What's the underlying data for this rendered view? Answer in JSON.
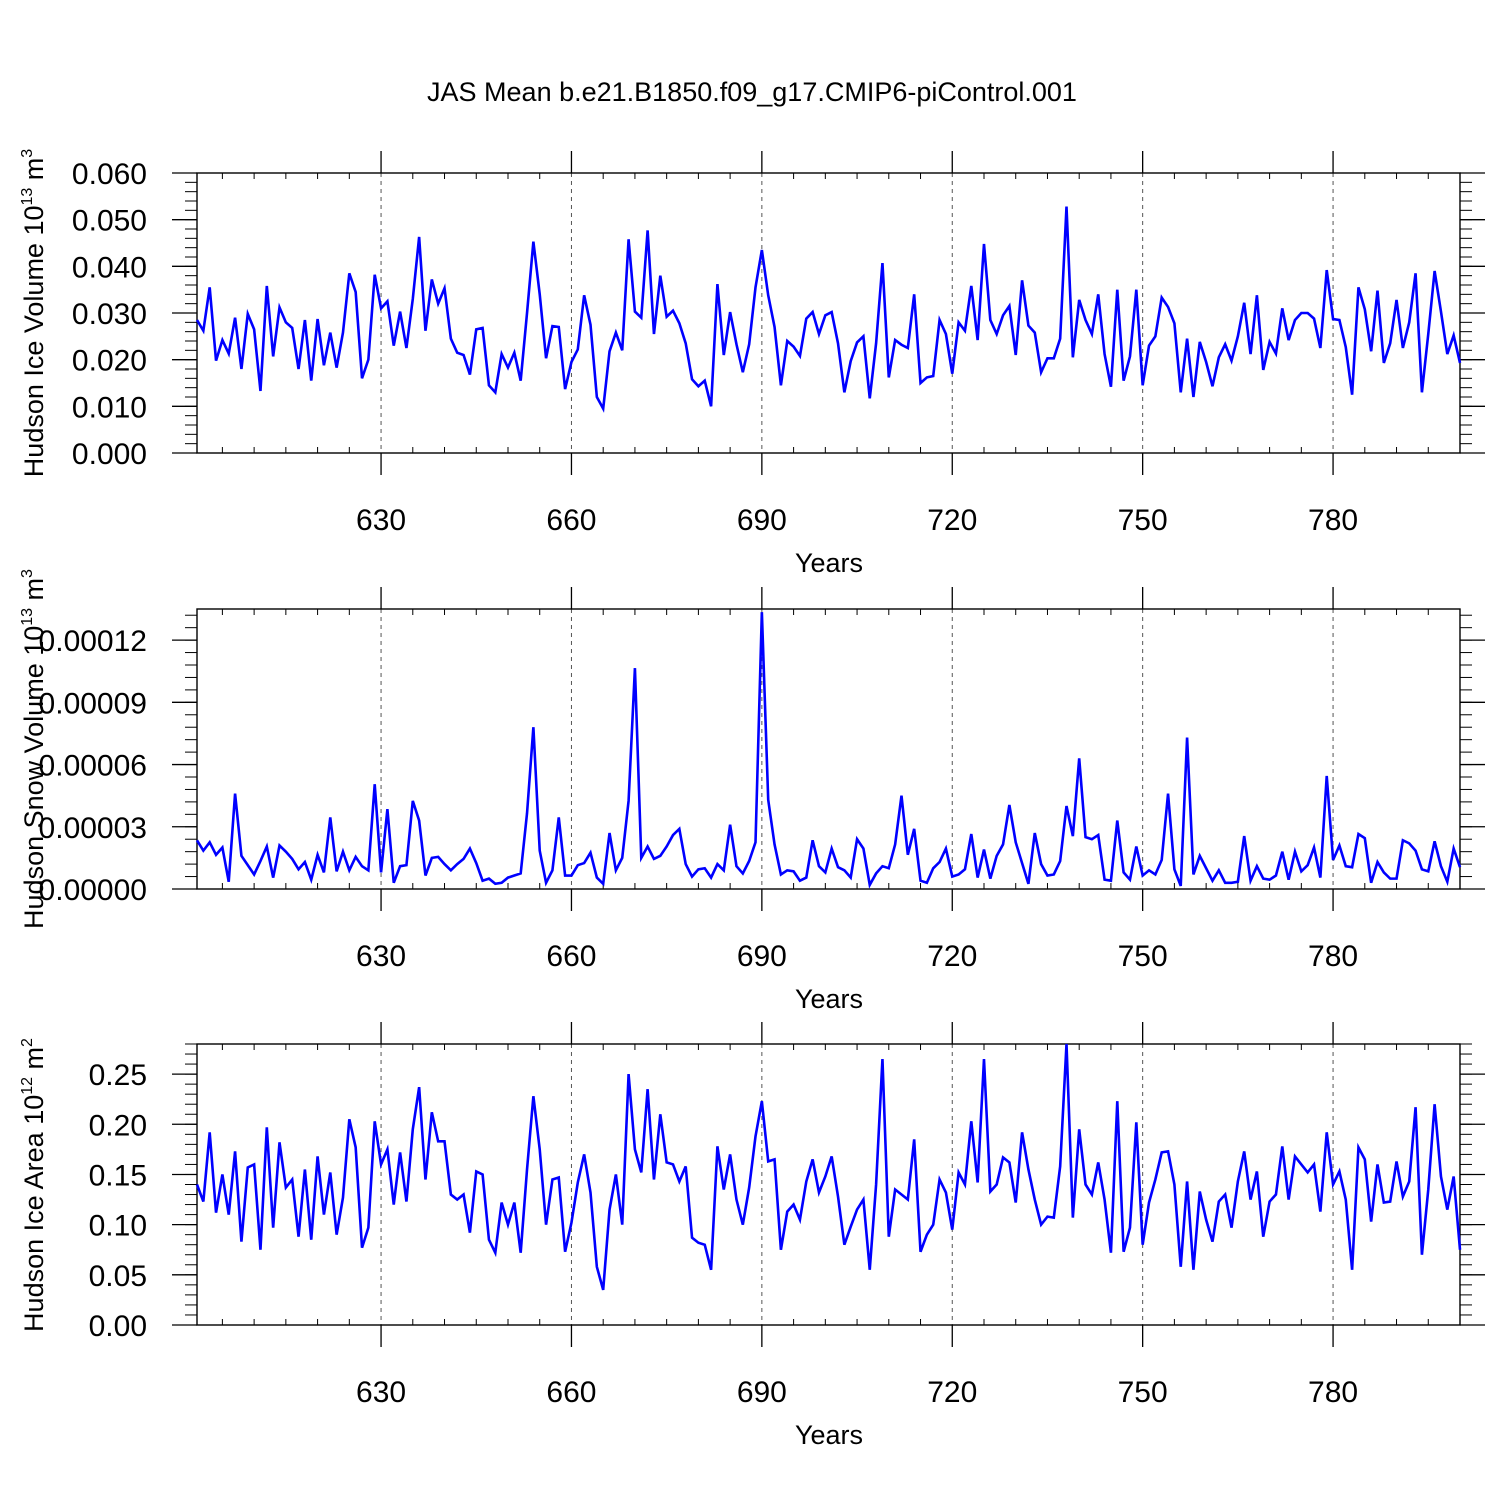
{
  "title": "JAS Mean b.e21.B1850.f09_g17.CMIP6-piControl.001",
  "chart_data": [
    {
      "type": "line",
      "title": "",
      "xlabel": "Years",
      "ylabel": "Hudson Ice Volume 10",
      "ylabel_exp": "13",
      "ylabel_unit": " m",
      "ylabel_unit_exp": "3",
      "xlim": [
        601,
        800
      ],
      "ylim": [
        0.0,
        0.06
      ],
      "x_ticks": [
        630,
        660,
        690,
        720,
        750,
        780
      ],
      "x_tick_labels": [
        "630",
        "660",
        "690",
        "720",
        "750",
        "780"
      ],
      "y_ticks": [
        0.0,
        0.01,
        0.02,
        0.03,
        0.04,
        0.05,
        0.06
      ],
      "y_tick_labels": [
        "0.000",
        "0.010",
        "0.020",
        "0.030",
        "0.040",
        "0.050",
        "0.060"
      ],
      "color": "#0000ff",
      "x_start": 601,
      "values": [
        0.0285,
        0.0262,
        0.0355,
        0.0198,
        0.0242,
        0.0213,
        0.029,
        0.018,
        0.0298,
        0.0265,
        0.0133,
        0.0358,
        0.0207,
        0.0312,
        0.028,
        0.0268,
        0.018,
        0.0285,
        0.0155,
        0.0287,
        0.0188,
        0.0258,
        0.0183,
        0.0258,
        0.0385,
        0.0345,
        0.016,
        0.02,
        0.0382,
        0.031,
        0.0325,
        0.023,
        0.0303,
        0.0225,
        0.033,
        0.0463,
        0.0262,
        0.0372,
        0.032,
        0.0353,
        0.0245,
        0.0215,
        0.021,
        0.0168,
        0.0265,
        0.0268,
        0.0145,
        0.013,
        0.0212,
        0.0183,
        0.0215,
        0.0155,
        0.03,
        0.0453,
        0.034,
        0.0203,
        0.0272,
        0.027,
        0.0137,
        0.0195,
        0.0222,
        0.0338,
        0.0275,
        0.012,
        0.0095,
        0.0218,
        0.0258,
        0.022,
        0.0458,
        0.0303,
        0.029,
        0.0477,
        0.0255,
        0.038,
        0.0292,
        0.0305,
        0.0278,
        0.0235,
        0.0158,
        0.0143,
        0.0155,
        0.01,
        0.0362,
        0.021,
        0.0302,
        0.0233,
        0.0173,
        0.0233,
        0.0355,
        0.0435,
        0.0338,
        0.027,
        0.0145,
        0.024,
        0.0228,
        0.0208,
        0.0288,
        0.0302,
        0.0255,
        0.0295,
        0.0302,
        0.0235,
        0.013,
        0.0197,
        0.0237,
        0.025,
        0.0117,
        0.0235,
        0.0407,
        0.0162,
        0.0242,
        0.0232,
        0.0225,
        0.034,
        0.015,
        0.0162,
        0.0165,
        0.0285,
        0.0255,
        0.017,
        0.028,
        0.0262,
        0.0358,
        0.0242,
        0.0448,
        0.0285,
        0.0255,
        0.0295,
        0.0315,
        0.021,
        0.037,
        0.0273,
        0.0258,
        0.0173,
        0.0203,
        0.0203,
        0.0245,
        0.0528,
        0.0205,
        0.0328,
        0.0285,
        0.0255,
        0.034,
        0.0212,
        0.0142,
        0.035,
        0.0155,
        0.0207,
        0.035,
        0.0145,
        0.023,
        0.025,
        0.0333,
        0.0313,
        0.0278,
        0.013,
        0.0245,
        0.012,
        0.0238,
        0.0195,
        0.0143,
        0.0205,
        0.0233,
        0.0198,
        0.025,
        0.0322,
        0.0212,
        0.0338,
        0.0178,
        0.0238,
        0.0213,
        0.031,
        0.0242,
        0.0285,
        0.03,
        0.03,
        0.0288,
        0.0225,
        0.0392,
        0.0287,
        0.0285,
        0.0227,
        0.0125,
        0.0355,
        0.0308,
        0.0218,
        0.0348,
        0.0193,
        0.0235,
        0.0328,
        0.0225,
        0.028,
        0.0385,
        0.013,
        0.0255,
        0.039,
        0.0303,
        0.0212,
        0.0252,
        0.0193
      ]
    },
    {
      "type": "line",
      "title": "",
      "xlabel": "Years",
      "ylabel": "Hudson Snow Volume 10",
      "ylabel_exp": "13",
      "ylabel_unit": " m",
      "ylabel_unit_exp": "3",
      "xlim": [
        601,
        800
      ],
      "ylim": [
        0.0,
        0.000135
      ],
      "x_ticks": [
        630,
        660,
        690,
        720,
        750,
        780
      ],
      "x_tick_labels": [
        "630",
        "660",
        "690",
        "720",
        "750",
        "780"
      ],
      "y_ticks": [
        0.0,
        3e-05,
        6e-05,
        9e-05,
        0.00012
      ],
      "y_tick_labels": [
        "0.00000",
        "0.00003",
        "0.00006",
        "0.00009",
        "0.00012"
      ],
      "color": "#0000ff",
      "x_start": 601,
      "values": [
        2.35e-05,
        1.85e-05,
        2.25e-05,
        1.65e-05,
        2e-05,
        3.5e-06,
        4.6e-05,
        1.6e-05,
        1.15e-05,
        7e-06,
        1.35e-05,
        2.05e-05,
        5.5e-06,
        2.1e-05,
        1.8e-05,
        1.45e-05,
        9.5e-06,
        1.3e-05,
        4.5e-06,
        1.65e-05,
        8e-06,
        3.45e-05,
        8.5e-06,
        1.8e-05,
        9e-06,
        1.55e-05,
        1.1e-05,
        9e-06,
        5.05e-05,
        8e-06,
        3.85e-05,
        3e-06,
        1.1e-05,
        1.15e-05,
        4.25e-05,
        3.3e-05,
        6.5e-06,
        1.5e-05,
        1.55e-05,
        1.2e-05,
        9e-06,
        1.2e-05,
        1.45e-05,
        1.95e-05,
        1.25e-05,
        4e-06,
        5e-06,
        2.5e-06,
        3e-06,
        5.5e-06,
        6.5e-06,
        7.5e-06,
        3.65e-05,
        7.8e-05,
        1.85e-05,
        3e-06,
        9e-06,
        3.45e-05,
        6.5e-06,
        6.5e-06,
        1.15e-05,
        1.25e-05,
        1.75e-05,
        5.5e-06,
        2.5e-06,
        2.7e-05,
        9e-06,
        1.5e-05,
        4.25e-05,
        0.0001065,
        1.5e-05,
        2.05e-05,
        1.45e-05,
        1.6e-05,
        2.05e-05,
        2.6e-05,
        2.9e-05,
        1.2e-05,
        6e-06,
        9.5e-06,
        1e-05,
        5.5e-06,
        1.2e-05,
        9e-06,
        3.1e-05,
        1.1e-05,
        7.5e-06,
        1.35e-05,
        2.25e-05,
        0.0001335,
        4.3e-05,
        2.15e-05,
        7e-06,
        9e-06,
        8.5e-06,
        4e-06,
        5.5e-06,
        2.35e-05,
        1.1e-05,
        8e-06,
        1.95e-05,
        1.05e-05,
        9e-06,
        5.5e-06,
        2.4e-05,
        1.95e-05,
        2e-06,
        7.5e-06,
        1.1e-05,
        1e-05,
        2.15e-05,
        4.5e-05,
        1.65e-05,
        2.9e-05,
        4e-06,
        3e-06,
        1e-05,
        1.3e-05,
        1.95e-05,
        6e-06,
        7e-06,
        9.5e-06,
        2.65e-05,
        5.5e-06,
        1.9e-05,
        5e-06,
        1.6e-05,
        2.15e-05,
        4.05e-05,
        2.25e-05,
        1.25e-05,
        2.5e-06,
        2.7e-05,
        1.2e-05,
        6.5e-06,
        7e-06,
        1.35e-05,
        4e-05,
        2.55e-05,
        6.3e-05,
        2.5e-05,
        2.4e-05,
        2.6e-05,
        4.5e-06,
        4e-06,
        3.3e-05,
        8e-06,
        4.5e-06,
        2.05e-05,
        6.5e-06,
        9e-06,
        7e-06,
        1.4e-05,
        4.6e-05,
        9.5e-06,
        1.5e-06,
        7.3e-05,
        7e-06,
        1.6e-05,
        1e-05,
        4e-06,
        9e-06,
        3e-06,
        3e-06,
        3.5e-06,
        2.55e-05,
        4e-06,
        1.1e-05,
        5e-06,
        4.5e-06,
        6.5e-06,
        1.8e-05,
        4.5e-06,
        1.8e-05,
        8.5e-06,
        1.15e-05,
        2e-05,
        5.5e-06,
        5.45e-05,
        1.4e-05,
        2.1e-05,
        1.1e-05,
        1.05e-05,
        2.65e-05,
        2.45e-05,
        3e-06,
        1.3e-05,
        8e-06,
        5e-06,
        5e-06,
        2.35e-05,
        2.2e-05,
        1.85e-05,
        9.5e-06,
        8.5e-06,
        2.3e-05,
        1.1e-05,
        3.5e-06,
        1.95e-05,
        1.05e-05
      ]
    },
    {
      "type": "line",
      "title": "",
      "xlabel": "Years",
      "ylabel": "Hudson Ice Area 10",
      "ylabel_exp": "12",
      "ylabel_unit": " m",
      "ylabel_unit_exp": "2",
      "xlim": [
        601,
        800
      ],
      "ylim": [
        0.0,
        0.28
      ],
      "x_ticks": [
        630,
        660,
        690,
        720,
        750,
        780
      ],
      "x_tick_labels": [
        "630",
        "660",
        "690",
        "720",
        "750",
        "780"
      ],
      "y_ticks": [
        0.0,
        0.05,
        0.1,
        0.15,
        0.2,
        0.25
      ],
      "y_tick_labels": [
        "0.00",
        "0.05",
        "0.10",
        "0.15",
        "0.20",
        "0.25"
      ],
      "color": "#0000ff",
      "x_start": 601,
      "values": [
        0.14,
        0.123,
        0.192,
        0.112,
        0.15,
        0.11,
        0.173,
        0.083,
        0.157,
        0.16,
        0.075,
        0.197,
        0.097,
        0.182,
        0.137,
        0.145,
        0.088,
        0.155,
        0.085,
        0.168,
        0.11,
        0.152,
        0.09,
        0.127,
        0.205,
        0.177,
        0.077,
        0.097,
        0.203,
        0.16,
        0.175,
        0.12,
        0.172,
        0.123,
        0.195,
        0.237,
        0.145,
        0.212,
        0.183,
        0.183,
        0.13,
        0.125,
        0.13,
        0.092,
        0.153,
        0.15,
        0.085,
        0.072,
        0.122,
        0.1,
        0.122,
        0.072,
        0.155,
        0.228,
        0.175,
        0.1,
        0.145,
        0.147,
        0.073,
        0.102,
        0.142,
        0.17,
        0.132,
        0.058,
        0.035,
        0.115,
        0.15,
        0.1,
        0.25,
        0.175,
        0.152,
        0.235,
        0.145,
        0.21,
        0.162,
        0.16,
        0.143,
        0.158,
        0.087,
        0.082,
        0.08,
        0.055,
        0.178,
        0.135,
        0.17,
        0.125,
        0.1,
        0.137,
        0.188,
        0.223,
        0.163,
        0.165,
        0.075,
        0.113,
        0.12,
        0.105,
        0.143,
        0.165,
        0.132,
        0.148,
        0.168,
        0.128,
        0.08,
        0.098,
        0.115,
        0.125,
        0.055,
        0.14,
        0.265,
        0.088,
        0.135,
        0.13,
        0.125,
        0.185,
        0.073,
        0.09,
        0.1,
        0.145,
        0.132,
        0.095,
        0.152,
        0.14,
        0.203,
        0.142,
        0.265,
        0.133,
        0.14,
        0.167,
        0.162,
        0.122,
        0.192,
        0.155,
        0.125,
        0.1,
        0.108,
        0.107,
        0.158,
        0.28,
        0.107,
        0.195,
        0.14,
        0.13,
        0.162,
        0.125,
        0.072,
        0.223,
        0.073,
        0.097,
        0.202,
        0.08,
        0.122,
        0.145,
        0.172,
        0.173,
        0.14,
        0.058,
        0.143,
        0.055,
        0.133,
        0.105,
        0.083,
        0.123,
        0.13,
        0.097,
        0.143,
        0.173,
        0.125,
        0.153,
        0.088,
        0.123,
        0.13,
        0.178,
        0.125,
        0.168,
        0.16,
        0.152,
        0.16,
        0.113,
        0.192,
        0.14,
        0.153,
        0.125,
        0.055,
        0.177,
        0.165,
        0.103,
        0.16,
        0.122,
        0.123,
        0.163,
        0.128,
        0.143,
        0.217,
        0.07,
        0.135,
        0.22,
        0.148,
        0.115,
        0.148,
        0.075
      ]
    }
  ]
}
